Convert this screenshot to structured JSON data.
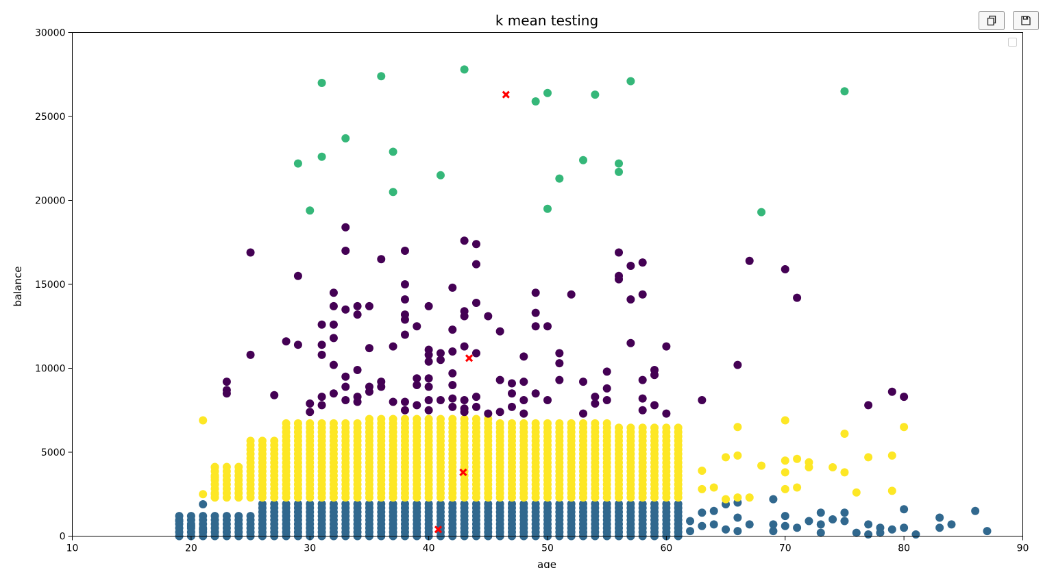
{
  "toolbar": {
    "copy_icon": "copy-icon",
    "save_icon": "floppy-disk-icon"
  },
  "colors": {
    "cluster_0": "#440154",
    "cluster_1": "#31688e",
    "cluster_2": "#35b779",
    "cluster_3": "#fde725",
    "centroid": "#ff0000"
  },
  "chart_data": {
    "type": "scatter",
    "title": "k mean testing",
    "xlabel": "age",
    "ylabel": "balance",
    "xlim": [
      10,
      90
    ],
    "ylim": [
      0,
      30000
    ],
    "xticks": [
      10,
      20,
      30,
      40,
      50,
      60,
      70,
      80,
      90
    ],
    "yticks": [
      0,
      5000,
      10000,
      15000,
      20000,
      25000,
      30000
    ],
    "grid": false,
    "legend": "top-right, empty",
    "clusters": [
      {
        "color": "#35b779",
        "points": [
          [
            29,
            22200
          ],
          [
            30,
            19400
          ],
          [
            31,
            27000
          ],
          [
            31,
            22600
          ],
          [
            33,
            23700
          ],
          [
            36,
            27400
          ],
          [
            37,
            22900
          ],
          [
            37,
            20500
          ],
          [
            41,
            21500
          ],
          [
            43,
            27800
          ],
          [
            49,
            25900
          ],
          [
            50,
            26400
          ],
          [
            50,
            19500
          ],
          [
            51,
            21300
          ],
          [
            53,
            22400
          ],
          [
            54,
            26300
          ],
          [
            56,
            22200
          ],
          [
            56,
            21700
          ],
          [
            57,
            27100
          ],
          [
            68,
            19300
          ],
          [
            75,
            26500
          ]
        ]
      },
      {
        "color": "#440154",
        "points": [
          [
            23,
            9200
          ],
          [
            23,
            8700
          ],
          [
            23,
            8500
          ],
          [
            25,
            16900
          ],
          [
            25,
            10800
          ],
          [
            27,
            8400
          ],
          [
            28,
            11600
          ],
          [
            29,
            15500
          ],
          [
            29,
            11400
          ],
          [
            30,
            7900
          ],
          [
            30,
            7400
          ],
          [
            31,
            12600
          ],
          [
            31,
            11400
          ],
          [
            31,
            10800
          ],
          [
            31,
            8300
          ],
          [
            31,
            7800
          ],
          [
            32,
            14500
          ],
          [
            32,
            13700
          ],
          [
            32,
            12600
          ],
          [
            32,
            11800
          ],
          [
            32,
            10200
          ],
          [
            32,
            8500
          ],
          [
            33,
            18400
          ],
          [
            33,
            17000
          ],
          [
            33,
            13500
          ],
          [
            33,
            9500
          ],
          [
            33,
            8900
          ],
          [
            33,
            8100
          ],
          [
            34,
            13700
          ],
          [
            34,
            13200
          ],
          [
            34,
            9900
          ],
          [
            34,
            8300
          ],
          [
            34,
            8000
          ],
          [
            35,
            13700
          ],
          [
            35,
            11200
          ],
          [
            35,
            8900
          ],
          [
            35,
            8600
          ],
          [
            36,
            16500
          ],
          [
            36,
            9200
          ],
          [
            36,
            8900
          ],
          [
            37,
            11300
          ],
          [
            37,
            8000
          ],
          [
            38,
            17000
          ],
          [
            38,
            15000
          ],
          [
            38,
            14100
          ],
          [
            38,
            13200
          ],
          [
            38,
            12900
          ],
          [
            38,
            12000
          ],
          [
            38,
            8000
          ],
          [
            38,
            7500
          ],
          [
            39,
            12500
          ],
          [
            39,
            9400
          ],
          [
            39,
            9000
          ],
          [
            39,
            7800
          ],
          [
            40,
            13700
          ],
          [
            40,
            11100
          ],
          [
            40,
            10800
          ],
          [
            40,
            10400
          ],
          [
            40,
            9400
          ],
          [
            40,
            8900
          ],
          [
            40,
            8100
          ],
          [
            40,
            7500
          ],
          [
            41,
            10900
          ],
          [
            41,
            10500
          ],
          [
            41,
            8100
          ],
          [
            42,
            14800
          ],
          [
            42,
            12300
          ],
          [
            42,
            11000
          ],
          [
            42,
            9700
          ],
          [
            42,
            9000
          ],
          [
            42,
            8200
          ],
          [
            42,
            7700
          ],
          [
            43,
            17600
          ],
          [
            43,
            13400
          ],
          [
            43,
            13100
          ],
          [
            43,
            11300
          ],
          [
            43,
            8100
          ],
          [
            43,
            7600
          ],
          [
            43,
            7400
          ],
          [
            44,
            17400
          ],
          [
            44,
            16200
          ],
          [
            44,
            13900
          ],
          [
            44,
            10900
          ],
          [
            44,
            8300
          ],
          [
            44,
            7700
          ],
          [
            45,
            13100
          ],
          [
            45,
            7300
          ],
          [
            46,
            12200
          ],
          [
            46,
            9300
          ],
          [
            46,
            7400
          ],
          [
            47,
            8500
          ],
          [
            47,
            9100
          ],
          [
            47,
            7700
          ],
          [
            48,
            10700
          ],
          [
            48,
            9200
          ],
          [
            48,
            8100
          ],
          [
            48,
            7300
          ],
          [
            49,
            14500
          ],
          [
            49,
            13300
          ],
          [
            49,
            12500
          ],
          [
            49,
            8500
          ],
          [
            50,
            12500
          ],
          [
            50,
            8100
          ],
          [
            51,
            10900
          ],
          [
            51,
            10300
          ],
          [
            51,
            9300
          ],
          [
            52,
            14400
          ],
          [
            53,
            9200
          ],
          [
            53,
            7300
          ],
          [
            54,
            8300
          ],
          [
            54,
            7900
          ],
          [
            55,
            9800
          ],
          [
            55,
            8800
          ],
          [
            55,
            8100
          ],
          [
            56,
            16900
          ],
          [
            56,
            15500
          ],
          [
            56,
            15300
          ],
          [
            57,
            16100
          ],
          [
            57,
            14100
          ],
          [
            57,
            11500
          ],
          [
            58,
            16300
          ],
          [
            58,
            14400
          ],
          [
            58,
            9300
          ],
          [
            58,
            8200
          ],
          [
            58,
            7500
          ],
          [
            59,
            9900
          ],
          [
            59,
            9600
          ],
          [
            59,
            7800
          ],
          [
            60,
            11300
          ],
          [
            60,
            7300
          ],
          [
            63,
            8100
          ],
          [
            66,
            10200
          ],
          [
            67,
            16400
          ],
          [
            70,
            15900
          ],
          [
            71,
            14200
          ],
          [
            77,
            7800
          ],
          [
            79,
            8600
          ],
          [
            80,
            8300
          ]
        ]
      },
      {
        "color": "#ff0000",
        "marker": "x",
        "points": [
          [
            40.8,
            400
          ],
          [
            42.9,
            3800
          ],
          [
            43.4,
            10600
          ],
          [
            46.5,
            26300
          ]
        ]
      }
    ]
  }
}
